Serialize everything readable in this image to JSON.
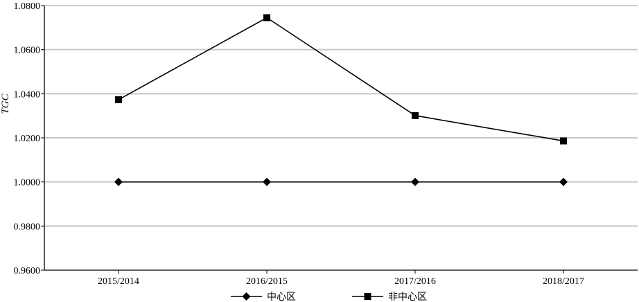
{
  "chart_data": {
    "type": "line",
    "title": "",
    "xlabel": "",
    "ylabel": "TGC",
    "categories": [
      "2015/2014",
      "2016/2015",
      "2017/2016",
      "2018/2017"
    ],
    "ylim": [
      0.96,
      1.08
    ],
    "yticks": [
      "0.9600",
      "0.9800",
      "1.0000",
      "1.0200",
      "1.0400",
      "1.0600",
      "1.0800"
    ],
    "grid": true,
    "legend_position": "bottom",
    "series": [
      {
        "name": "中心区",
        "marker": "diamond",
        "values": [
          1.0,
          1.0,
          1.0,
          1.0
        ]
      },
      {
        "name": "非中心区",
        "marker": "square",
        "values": [
          1.0373,
          1.0745,
          1.0301,
          1.0186
        ]
      }
    ],
    "colors": {
      "line": "#000000",
      "grid": "#c8c8c8",
      "axis": "#000000"
    }
  }
}
